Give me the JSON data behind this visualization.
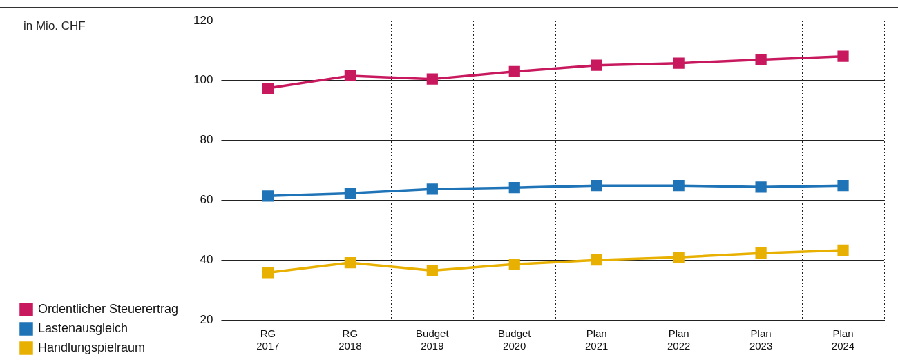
{
  "chart_data": {
    "type": "line",
    "annotations": [
      "in Mio. CHF"
    ],
    "categories": [
      "RG\n2017",
      "RG\n2018",
      "Budget\n2019",
      "Budget\n2020",
      "Plan\n2021",
      "Plan\n2022",
      "Plan\n2023",
      "Plan\n2024"
    ],
    "series": [
      {
        "name": "Ordentlicher Steuerertrag",
        "color": "#c8185e",
        "values": [
          97.4,
          101.6,
          100.5,
          103,
          105.1,
          105.8,
          107,
          108.1
        ]
      },
      {
        "name": "Lastenausgleich",
        "color": "#1f73b7",
        "values": [
          61.4,
          62.3,
          63.7,
          64.2,
          64.9,
          64.9,
          64.4,
          64.9
        ]
      },
      {
        "name": "Handlungspielraum",
        "color": "#e8b000",
        "values": [
          35.8,
          39.1,
          36.5,
          38.6,
          40,
          40.9,
          42.3,
          43.3
        ]
      }
    ],
    "ylim": [
      20,
      120
    ],
    "yticks": [
      20,
      40,
      60,
      80,
      100,
      120
    ],
    "grid": true,
    "legend": "bottom left",
    "marker": "square",
    "line_style": "solid"
  }
}
